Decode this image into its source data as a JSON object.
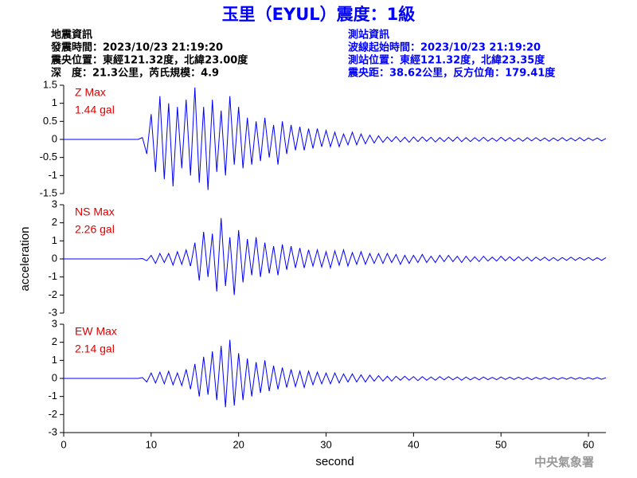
{
  "title": "玉里（EYUL）震度：1級",
  "event_info": [
    "地震資訊",
    "發震時間：2023/10/23 21:19:20",
    "震央位置：東經121.32度，北緯23.00度",
    "深　度：21.3公里，芮氏規模：4.9"
  ],
  "station_info": [
    "測站資訊",
    "波線起始時間：2023/10/23 21:19:20",
    "測站位置：東經121.32度，北緯23.35度",
    "震央距：38.62公里，反方位角：179.41度"
  ],
  "credit": "中央氣象署",
  "chart_data": [
    {
      "type": "line",
      "annotation": [
        "Z Max",
        "1.44 gal"
      ],
      "annotation_color": "#e00000",
      "color": "#0000ff",
      "xlim": [
        0,
        62
      ],
      "ylim": [
        -1.5,
        1.5
      ],
      "yticks": [
        -1.5,
        -1,
        -0.5,
        0,
        0.5,
        1,
        1.5
      ],
      "x": [
        0,
        8.5,
        9,
        9.5,
        10,
        10.5,
        11,
        11.5,
        12,
        12.5,
        13,
        13.5,
        14,
        14.5,
        15,
        15.5,
        16,
        16.5,
        17,
        17.5,
        18,
        18.5,
        19,
        19.5,
        20,
        20.5,
        21,
        21.5,
        22,
        22.5,
        23,
        23.5,
        24,
        24.5,
        25,
        25.5,
        26,
        26.5,
        27,
        27.5,
        28,
        28.5,
        29,
        29.5,
        30,
        30.5,
        31,
        31.5,
        32,
        32.5,
        33,
        33.5,
        34,
        34.5,
        35,
        35.5,
        36,
        36.5,
        37,
        37.5,
        38,
        38.5,
        39,
        39.5,
        40,
        40.5,
        41,
        41.5,
        42,
        42.5,
        43,
        43.5,
        44,
        44.5,
        45,
        45.5,
        46,
        46.5,
        47,
        47.5,
        48,
        48.5,
        49,
        49.5,
        50,
        50.5,
        51,
        51.5,
        52,
        52.5,
        53,
        53.5,
        54,
        54.5,
        55,
        55.5,
        56,
        56.5,
        57,
        57.5,
        58,
        58.5,
        59,
        59.5,
        60,
        60.5,
        61,
        61.5,
        62
      ],
      "values": [
        0,
        0,
        0.05,
        -0.4,
        0.7,
        -0.9,
        1.2,
        -1.1,
        1.0,
        -1.3,
        0.9,
        -0.8,
        1.1,
        -1.0,
        1.44,
        -1.2,
        0.9,
        -1.4,
        1.1,
        -0.9,
        0.8,
        -1.0,
        1.2,
        -0.7,
        0.9,
        -0.8,
        0.6,
        -0.7,
        0.5,
        -0.6,
        0.6,
        -0.5,
        0.4,
        -0.7,
        0.5,
        -0.4,
        0.4,
        -0.3,
        0.35,
        -0.3,
        0.3,
        -0.25,
        0.3,
        -0.2,
        0.25,
        -0.2,
        0.2,
        -0.2,
        0.15,
        -0.15,
        0.2,
        -0.15,
        0.15,
        -0.12,
        0.12,
        -0.1,
        0.1,
        -0.08,
        0.07,
        -0.06,
        0.08,
        -0.07,
        0.06,
        -0.08,
        0.07,
        -0.06,
        0.07,
        -0.05,
        0.06,
        -0.07,
        0.05,
        -0.06,
        0.06,
        -0.05,
        0.07,
        -0.06,
        0.05,
        -0.06,
        0.05,
        -0.05,
        0.06,
        -0.05,
        0.04,
        -0.05,
        0.06,
        -0.04,
        0.05,
        -0.05,
        0.04,
        -0.05,
        0.05,
        -0.04,
        0.05,
        -0.04,
        0.04,
        -0.05,
        0.04,
        -0.04,
        0.05,
        -0.04,
        0.04,
        -0.04,
        0.05,
        -0.04,
        0.04,
        -0.03,
        0.04,
        -0.04,
        0.03
      ]
    },
    {
      "type": "line",
      "annotation": [
        "NS Max",
        "2.26 gal"
      ],
      "annotation_color": "#e00000",
      "color": "#0000ff",
      "ylabel": "acceleration",
      "xlim": [
        0,
        62
      ],
      "ylim": [
        -3,
        3
      ],
      "yticks": [
        -3,
        -2,
        -1,
        0,
        1,
        2,
        3
      ],
      "x": [
        0,
        8.5,
        9,
        9.5,
        10,
        10.5,
        11,
        11.5,
        12,
        12.5,
        13,
        13.5,
        14,
        14.5,
        15,
        15.5,
        16,
        16.5,
        17,
        17.5,
        18,
        18.5,
        19,
        19.5,
        20,
        20.5,
        21,
        21.5,
        22,
        22.5,
        23,
        23.5,
        24,
        24.5,
        25,
        25.5,
        26,
        26.5,
        27,
        27.5,
        28,
        28.5,
        29,
        29.5,
        30,
        30.5,
        31,
        31.5,
        32,
        32.5,
        33,
        33.5,
        34,
        34.5,
        35,
        35.5,
        36,
        36.5,
        37,
        37.5,
        38,
        38.5,
        39,
        39.5,
        40,
        40.5,
        41,
        41.5,
        42,
        42.5,
        43,
        43.5,
        44,
        44.5,
        45,
        45.5,
        46,
        46.5,
        47,
        47.5,
        48,
        48.5,
        49,
        49.5,
        50,
        50.5,
        51,
        51.5,
        52,
        52.5,
        53,
        53.5,
        54,
        54.5,
        55,
        55.5,
        56,
        56.5,
        57,
        57.5,
        58,
        58.5,
        59,
        59.5,
        60,
        60.5,
        61,
        61.5,
        62
      ],
      "values": [
        0,
        0,
        0.02,
        -0.1,
        0.2,
        -0.25,
        0.3,
        -0.2,
        0.3,
        -0.35,
        0.4,
        -0.3,
        0.5,
        -0.4,
        0.9,
        -1.2,
        1.5,
        -1.0,
        1.4,
        -1.8,
        2.26,
        -1.5,
        1.2,
        -2.0,
        1.6,
        -1.3,
        1.1,
        -0.9,
        1.2,
        -1.0,
        0.9,
        -0.8,
        0.7,
        -0.9,
        0.8,
        -0.6,
        0.7,
        -0.5,
        0.6,
        -0.5,
        0.5,
        -0.4,
        0.5,
        -0.45,
        0.4,
        -0.5,
        0.45,
        -0.35,
        0.5,
        -0.4,
        0.35,
        -0.3,
        0.4,
        -0.3,
        0.3,
        -0.25,
        0.3,
        -0.25,
        0.3,
        -0.2,
        0.25,
        -0.3,
        0.2,
        -0.25,
        0.2,
        -0.2,
        0.25,
        -0.2,
        0.15,
        -0.2,
        0.2,
        -0.15,
        0.2,
        -0.15,
        0.15,
        -0.2,
        0.15,
        -0.15,
        0.12,
        -0.15,
        0.15,
        -0.12,
        0.1,
        -0.12,
        0.15,
        -0.1,
        0.12,
        -0.1,
        0.12,
        -0.1,
        0.1,
        -0.12,
        0.1,
        -0.08,
        0.1,
        -0.1,
        0.08,
        -0.1,
        0.08,
        -0.08,
        0.1,
        -0.08,
        0.08,
        -0.07,
        0.08,
        -0.08,
        0.07,
        -0.08,
        0.07
      ]
    },
    {
      "type": "line",
      "annotation": [
        "EW Max",
        "2.14 gal"
      ],
      "annotation_color": "#e00000",
      "color": "#0000ff",
      "xlabel": "second",
      "xlim": [
        0,
        62
      ],
      "xticks": [
        0,
        10,
        20,
        30,
        40,
        50,
        60
      ],
      "ylim": [
        -3,
        3
      ],
      "yticks": [
        -3,
        -2,
        -1,
        0,
        1,
        2,
        3
      ],
      "x": [
        0,
        8.5,
        9,
        9.5,
        10,
        10.5,
        11,
        11.5,
        12,
        12.5,
        13,
        13.5,
        14,
        14.5,
        15,
        15.5,
        16,
        16.5,
        17,
        17.5,
        18,
        18.5,
        19,
        19.5,
        20,
        20.5,
        21,
        21.5,
        22,
        22.5,
        23,
        23.5,
        24,
        24.5,
        25,
        25.5,
        26,
        26.5,
        27,
        27.5,
        28,
        28.5,
        29,
        29.5,
        30,
        30.5,
        31,
        31.5,
        32,
        32.5,
        33,
        33.5,
        34,
        34.5,
        35,
        35.5,
        36,
        36.5,
        37,
        37.5,
        38,
        38.5,
        39,
        39.5,
        40,
        40.5,
        41,
        41.5,
        42,
        42.5,
        43,
        43.5,
        44,
        44.5,
        45,
        45.5,
        46,
        46.5,
        47,
        47.5,
        48,
        48.5,
        49,
        49.5,
        50,
        50.5,
        51,
        51.5,
        52,
        52.5,
        53,
        53.5,
        54,
        54.5,
        55,
        55.5,
        56,
        56.5,
        57,
        57.5,
        58,
        58.5,
        59,
        59.5,
        60,
        60.5,
        61,
        61.5,
        62
      ],
      "values": [
        0,
        0,
        0.05,
        -0.2,
        0.3,
        -0.25,
        0.35,
        -0.3,
        0.4,
        -0.35,
        0.3,
        -0.4,
        0.5,
        -0.6,
        0.8,
        -1.0,
        1.2,
        -0.9,
        1.5,
        -1.2,
        1.8,
        -1.6,
        2.14,
        -1.5,
        1.4,
        -1.2,
        1.1,
        -1.0,
        0.9,
        -0.8,
        1.0,
        -0.7,
        0.7,
        -0.6,
        0.6,
        -0.5,
        0.5,
        -0.45,
        0.4,
        -0.5,
        0.4,
        -0.35,
        0.35,
        -0.3,
        0.3,
        -0.3,
        0.3,
        -0.25,
        0.25,
        -0.2,
        0.25,
        -0.2,
        0.2,
        -0.2,
        0.18,
        -0.15,
        0.15,
        -0.15,
        0.12,
        -0.15,
        0.12,
        -0.1,
        0.12,
        -0.1,
        0.1,
        -0.12,
        0.1,
        -0.1,
        0.08,
        -0.1,
        0.1,
        -0.08,
        0.1,
        -0.08,
        0.08,
        -0.1,
        0.08,
        -0.08,
        0.07,
        -0.08,
        0.08,
        -0.07,
        0.06,
        -0.07,
        0.08,
        -0.06,
        0.07,
        -0.06,
        0.07,
        -0.06,
        0.06,
        -0.07,
        0.06,
        -0.05,
        0.06,
        -0.06,
        0.05,
        -0.06,
        0.05,
        -0.05,
        0.06,
        -0.05,
        0.05,
        -0.05,
        0.05,
        -0.05,
        0.05,
        -0.05,
        0.04
      ]
    }
  ]
}
